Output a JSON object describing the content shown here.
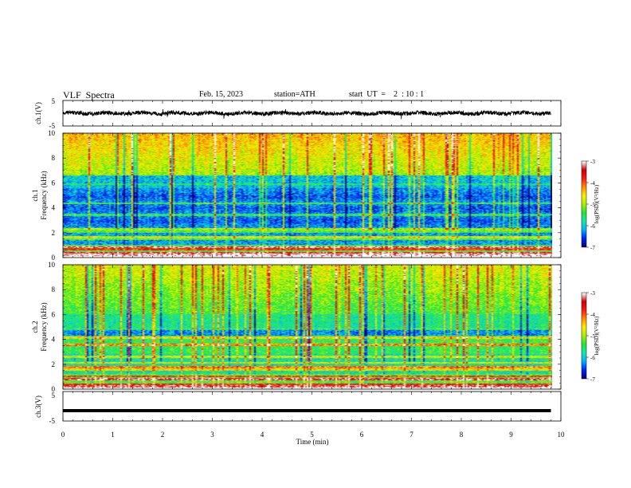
{
  "header": {
    "title": "VLF  Spectra",
    "date": "Feb. 15, 2023",
    "station": "station=ATH",
    "start": "start  UT  =    2  : 10 : 1"
  },
  "chart_data": [
    {
      "type": "line",
      "id": "ch1-waveform",
      "ylabel": "ch.1(V)",
      "ylim": [
        -5,
        5
      ],
      "yticks": [
        "5",
        "-5"
      ],
      "xlim": [
        0,
        10
      ],
      "series": [
        {
          "color": "#000000",
          "level": 0,
          "style": "noisy"
        }
      ]
    },
    {
      "type": "heatmap",
      "id": "ch1-spectrogram",
      "ylabel": "ch.1\nFrequency  (kHz)",
      "ylabel_lines": [
        "ch.1",
        "Frequency  (kHz)"
      ],
      "ylim": [
        0,
        10
      ],
      "yticks": [
        "0",
        "2",
        "4",
        "6",
        "8",
        "10"
      ],
      "xlim": [
        0,
        9.8
      ],
      "colorbar": {
        "label": "log(PSD)(V²/Hz)",
        "range": [
          -7,
          -3
        ],
        "ticks": [
          "-3",
          "-4",
          "-5",
          "-6",
          "-7"
        ]
      }
    },
    {
      "type": "heatmap",
      "id": "ch2-spectrogram",
      "ylabel": "ch.2\nFrequency  (kHz)",
      "ylabel_lines": [
        "ch.2",
        "Frequency  (kHz)"
      ],
      "ylim": [
        0,
        10
      ],
      "yticks": [
        "0",
        "2",
        "4",
        "6",
        "8",
        "10"
      ],
      "xlim": [
        0,
        9.8
      ],
      "colorbar": {
        "label": "log(PSD)(V²/Hz)",
        "range": [
          -7,
          -3
        ],
        "ticks": [
          "-3",
          "-4",
          "-5",
          "-6",
          "-7"
        ]
      }
    },
    {
      "type": "line",
      "id": "ch3-waveform",
      "ylabel": "ch.3(V)",
      "ylim": [
        -5,
        5
      ],
      "yticks": [
        "5",
        "-5"
      ],
      "xlim": [
        0,
        10
      ],
      "series": [
        {
          "color": "#000000",
          "level": -1.5,
          "style": "thick-flat"
        }
      ]
    }
  ],
  "xaxis": {
    "label": "Time  (min)",
    "ticks": [
      "0",
      "1",
      "2",
      "3",
      "4",
      "5",
      "6",
      "7",
      "8",
      "9",
      "10"
    ],
    "range": [
      0,
      10
    ]
  },
  "colors": {
    "colormap": [
      "#0a007a",
      "#0026ff",
      "#00b4ff",
      "#18e6a8",
      "#22e63a",
      "#aaf000",
      "#ffee00",
      "#ff8c00",
      "#ff1a1a",
      "#cc0000",
      "#ffffff"
    ]
  }
}
